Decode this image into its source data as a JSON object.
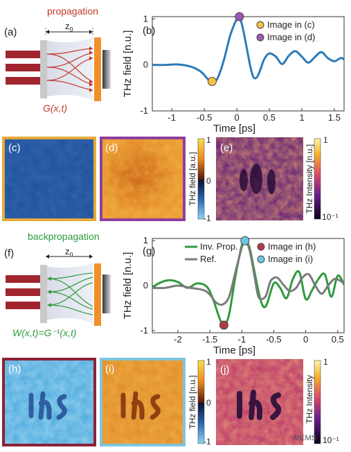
{
  "panel_labels": {
    "a": "(a)",
    "b": "(b)",
    "c": "(c)",
    "d": "(d)",
    "e": "(e)",
    "f": "(f)",
    "g": "(g)",
    "h": "(h)",
    "i": "(i)",
    "j": "(j)"
  },
  "schematic_top": {
    "title": "propagation",
    "distance": "z",
    "distance_sub": "0",
    "operator": "G(x,t)"
  },
  "schematic_bottom": {
    "title": "backpropagation",
    "distance": "z",
    "distance_sub": "0",
    "operator": "W(x,t)=G⁻¹(x,t)"
  },
  "colors": {
    "blue_trace": "#2b7bb9",
    "green_trace": "#2e9a3e",
    "gray_trace": "#7a7a7a",
    "marker_c": "#f5c342",
    "marker_d": "#9b59b6",
    "marker_h": "#b23a48",
    "marker_i": "#6ec6e6",
    "frame_c": "#e7a93a",
    "frame_d": "#8e3f9e",
    "frame_h": "#8b2236",
    "frame_i": "#7fc6dd",
    "propagation_text": "#c0392b",
    "backprop_text": "#2e9a3e"
  },
  "chart_data": [
    {
      "type": "line",
      "panel": "(b)",
      "xlabel": "Time [ps]",
      "ylabel": "THz field [n.u.]",
      "xlim": [
        -1.3,
        1.65
      ],
      "ylim": [
        -1,
        1.05
      ],
      "xticks": [
        "-1",
        "-0.5",
        "0",
        "0.5",
        "1",
        "1.5"
      ],
      "yticks": [
        "-1",
        "0",
        "1"
      ],
      "series": [
        {
          "x": [
            -1.3,
            -1.1,
            -0.9,
            -0.7,
            -0.55,
            -0.45,
            -0.38,
            -0.3,
            -0.2,
            -0.1,
            0.0,
            0.04,
            0.1,
            0.2,
            0.25,
            0.3,
            0.35,
            0.42,
            0.5,
            0.6,
            0.7,
            0.8,
            0.9,
            1.0,
            1.1,
            1.2,
            1.3,
            1.4,
            1.5,
            1.6,
            1.65
          ],
          "y": [
            0.0,
            0.0,
            0.01,
            -0.04,
            -0.15,
            -0.3,
            -0.36,
            -0.3,
            0.1,
            0.65,
            1.0,
            1.05,
            0.75,
            0.02,
            -0.25,
            -0.28,
            -0.15,
            0.12,
            0.25,
            0.18,
            0.02,
            0.2,
            0.3,
            0.18,
            0.05,
            0.17,
            0.28,
            0.15,
            0.08,
            0.15,
            0.12
          ]
        }
      ],
      "markers": [
        {
          "x": -0.38,
          "y": -0.36,
          "label": "Image in (c)"
        },
        {
          "x": 0.04,
          "y": 1.05,
          "label": "Image in (d)"
        }
      ],
      "legend": [
        "Image in (c)",
        "Image in (d)"
      ],
      "legend_position": "top-right"
    },
    {
      "type": "line",
      "panel": "(g)",
      "xlabel": "Time [ps]",
      "ylabel": "THz field [n.u.]",
      "xlim": [
        -2.4,
        0.6
      ],
      "ylim": [
        -1.05,
        1.05
      ],
      "xticks": [
        "-2",
        "-1.5",
        "-1",
        "-0.5",
        "0",
        "0.5"
      ],
      "yticks": [
        "-1",
        "0",
        "1"
      ],
      "series": [
        {
          "name": "Inv. Prop.",
          "x": [
            -2.4,
            -2.3,
            -2.15,
            -2.0,
            -1.85,
            -1.7,
            -1.55,
            -1.45,
            -1.35,
            -1.28,
            -1.2,
            -1.1,
            -1.0,
            -0.95,
            -0.88,
            -0.8,
            -0.7,
            -0.62,
            -0.5,
            -0.4,
            -0.3,
            -0.2,
            -0.1,
            0.0,
            0.1,
            0.2,
            0.3,
            0.4,
            0.5,
            0.6
          ],
          "y": [
            -0.05,
            0.05,
            0.12,
            0.08,
            -0.05,
            0.05,
            -0.02,
            -0.3,
            -0.72,
            -0.88,
            -0.65,
            0.2,
            0.9,
            1.0,
            0.85,
            0.3,
            -0.35,
            -0.45,
            0.05,
            -0.05,
            -0.28,
            0.15,
            0.3,
            -0.3,
            -0.1,
            0.15,
            0.25,
            -0.25,
            0.22,
            0.02
          ]
        },
        {
          "name": "Ref.",
          "x": [
            -2.4,
            -2.2,
            -2.0,
            -1.8,
            -1.6,
            -1.5,
            -1.4,
            -1.3,
            -1.2,
            -1.1,
            -1.0,
            -0.95,
            -0.88,
            -0.8,
            -0.75,
            -0.7,
            -0.62,
            -0.55,
            -0.45,
            -0.35,
            -0.25,
            -0.15,
            -0.05,
            0.05,
            0.15,
            0.25,
            0.35,
            0.45,
            0.55,
            0.6
          ],
          "y": [
            -0.05,
            -0.05,
            0.0,
            -0.05,
            -0.1,
            -0.2,
            -0.38,
            -0.42,
            -0.25,
            0.3,
            0.85,
            1.0,
            0.8,
            0.2,
            -0.2,
            -0.3,
            -0.22,
            0.1,
            0.18,
            0.02,
            -0.12,
            -0.05,
            0.18,
            0.25,
            0.0,
            -0.18,
            0.0,
            0.15,
            0.1,
            0.05
          ]
        }
      ],
      "markers": [
        {
          "x": -1.28,
          "y": -0.88,
          "label": "Image in (h)"
        },
        {
          "x": -0.95,
          "y": 1.0,
          "label": "Image in (i)"
        }
      ],
      "legend": [
        "Inv. Prop.",
        "Ref.",
        "Image in (h)",
        "Image in (i)"
      ],
      "legend_position": "top"
    }
  ],
  "colorbars": {
    "field_top": {
      "label": "THz field [a.u.]",
      "ticks": [
        "1",
        "0",
        "-1"
      ]
    },
    "intensity_top": {
      "label": "THz Intensity [n.u.]",
      "ticks": [
        "1",
        "10⁻¹"
      ]
    },
    "field_bottom": {
      "label": "THz field [n.u.]",
      "ticks": [
        "1",
        "0",
        "-1"
      ]
    },
    "intensity_bottom": {
      "label": "THz Intensity",
      "ticks": [
        "1",
        "10⁻¹"
      ]
    }
  },
  "watermark": "MEMS"
}
